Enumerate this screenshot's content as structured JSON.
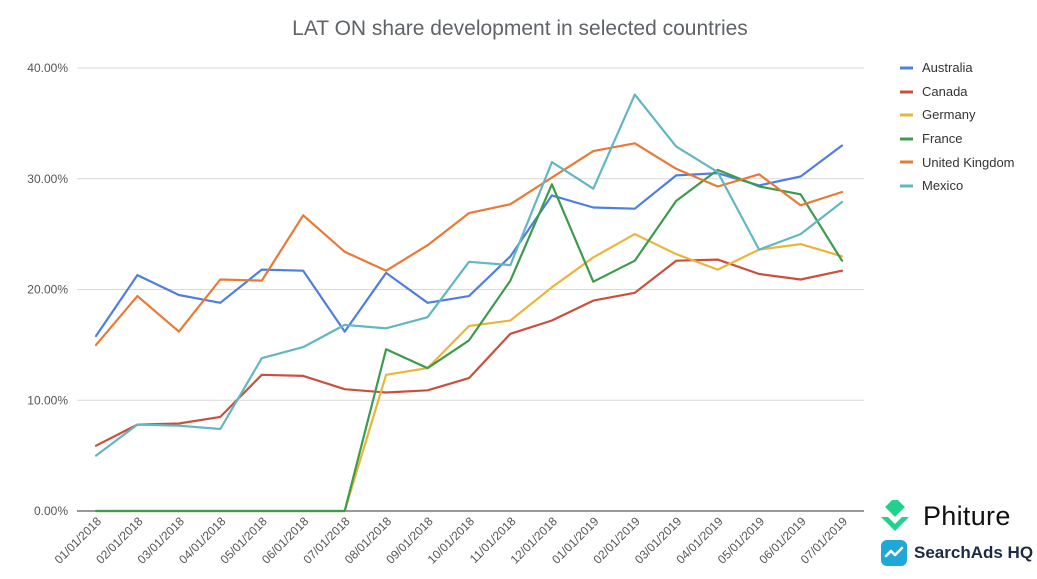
{
  "chart_data": {
    "type": "line",
    "title": "LAT ON share development in selected countries",
    "xlabel": "",
    "ylabel": "",
    "ylim": [
      0,
      40
    ],
    "y_ticks": [
      "0.00%",
      "10.00%",
      "20.00%",
      "30.00%",
      "40.00%"
    ],
    "y_tick_values": [
      0,
      10,
      20,
      30,
      40
    ],
    "categories": [
      "01/01/2018",
      "02/01/2018",
      "03/01/2018",
      "04/01/2018",
      "05/01/2018",
      "06/01/2018",
      "07/01/2018",
      "08/01/2018",
      "09/01/2018",
      "10/01/2018",
      "11/01/2018",
      "12/01/2018",
      "01/01/2019",
      "02/01/2019",
      "03/01/2019",
      "04/01/2019",
      "05/01/2019",
      "06/01/2019",
      "07/01/2019"
    ],
    "grid": true,
    "legend_position": "right",
    "series": [
      {
        "name": "Australia",
        "color": "#4f7fde",
        "values": [
          15.8,
          21.3,
          19.5,
          18.8,
          21.8,
          21.7,
          16.2,
          21.5,
          18.8,
          19.4,
          23.0,
          28.5,
          27.4,
          27.3,
          30.3,
          30.5,
          29.4,
          30.2,
          33.0
        ]
      },
      {
        "name": "Canada",
        "color": "#c9503d",
        "values": [
          5.9,
          7.8,
          7.9,
          8.5,
          12.3,
          12.2,
          11.0,
          10.7,
          10.9,
          12.0,
          16.0,
          17.2,
          19.0,
          19.7,
          22.6,
          22.7,
          21.4,
          20.9,
          21.7
        ]
      },
      {
        "name": "Germany",
        "color": "#eab53c",
        "values": [
          0,
          0,
          0,
          0,
          0,
          0,
          0,
          12.3,
          12.9,
          16.7,
          17.2,
          20.2,
          22.9,
          25.0,
          23.2,
          21.8,
          23.6,
          24.1,
          23.0
        ]
      },
      {
        "name": "France",
        "color": "#3d9b4c",
        "values": [
          0,
          0,
          0,
          0,
          0,
          0,
          0,
          14.6,
          12.9,
          15.4,
          20.8,
          29.5,
          20.7,
          22.6,
          28.0,
          30.8,
          29.3,
          28.6,
          22.6
        ]
      },
      {
        "name": "United Kingdom",
        "color": "#e97a36",
        "values": [
          15.0,
          19.4,
          16.2,
          20.9,
          20.8,
          26.7,
          23.4,
          21.7,
          24.0,
          26.9,
          27.7,
          30.1,
          32.5,
          33.2,
          30.9,
          29.3,
          30.4,
          27.6,
          28.8
        ]
      },
      {
        "name": "Mexico",
        "color": "#62b7c0",
        "values": [
          5.0,
          7.8,
          7.7,
          7.4,
          13.8,
          14.8,
          16.8,
          16.5,
          17.5,
          22.5,
          22.2,
          31.5,
          29.1,
          37.6,
          32.9,
          30.6,
          23.6,
          25.0,
          27.9
        ]
      }
    ]
  },
  "branding": {
    "phiture": {
      "name": "Phiture",
      "icon": "phiture-diamond-logo",
      "color": "#1fd38c"
    },
    "searchads": {
      "name": "SearchAds HQ",
      "icon": "searchads-hq-logo",
      "color": "#1fa7d8"
    }
  }
}
